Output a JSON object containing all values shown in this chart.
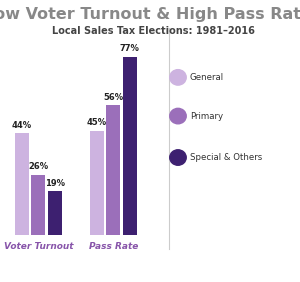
{
  "title": "Low Voter Turnout & High Pass Rates",
  "subtitle": "Local Sales Tax Elections: 1981–2016",
  "title_fontsize": 11.5,
  "subtitle_fontsize": 7,
  "groups": [
    "Voter Turnout",
    "Pass Rate"
  ],
  "categories": [
    "General",
    "Primary",
    "Special & Others"
  ],
  "values": {
    "Voter Turnout": [
      44,
      26,
      19
    ],
    "Pass Rate": [
      45,
      56,
      77
    ]
  },
  "labels": {
    "Voter Turnout": [
      "44%",
      "26%",
      "19%"
    ],
    "Pass Rate": [
      "45%",
      "56%",
      "77%"
    ]
  },
  "colors": [
    "#cdb3e0",
    "#9b6fba",
    "#3d2070"
  ],
  "group_label_color": "#8855aa",
  "background_color": "#ffffff",
  "legend_labels": [
    "General",
    "Primary",
    "Special & Others"
  ],
  "legend_marker_colors": [
    "#cdb3e0",
    "#9b6fba",
    "#3d2070"
  ],
  "title_color": "#888888",
  "subtitle_color": "#444444",
  "label_color": "#222222",
  "divider_color": "#cccccc"
}
